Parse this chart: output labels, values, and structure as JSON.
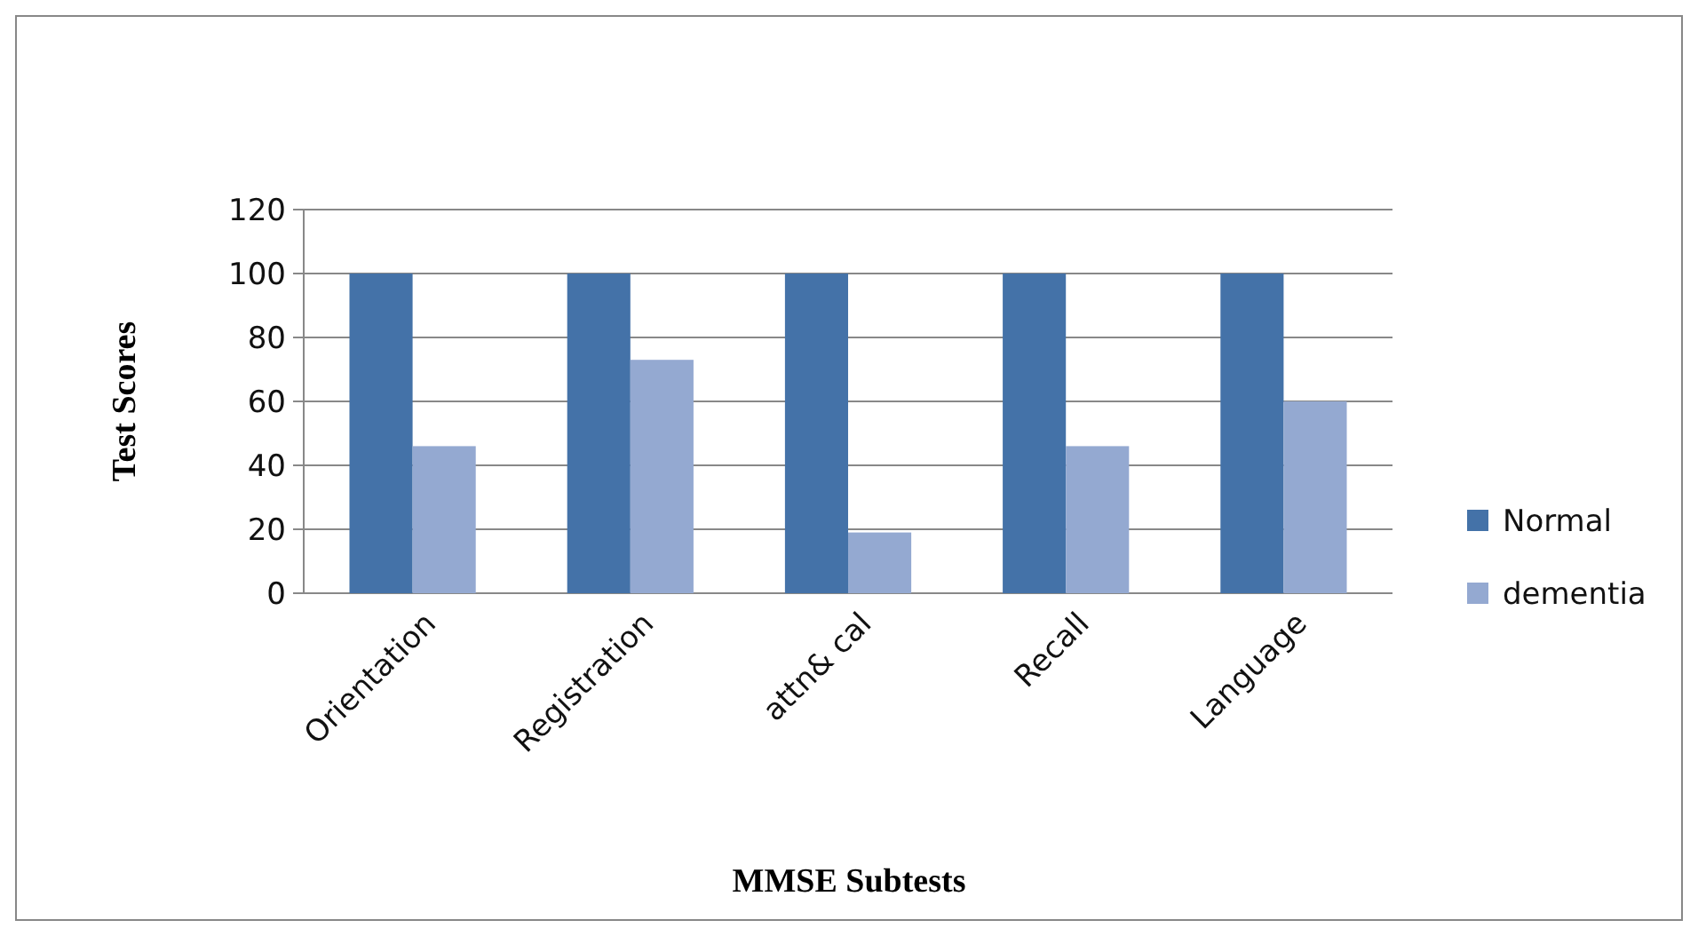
{
  "chart_data": {
    "type": "bar",
    "xlabel": "MMSE Subtests",
    "ylabel": "Test Scores",
    "categories": [
      "Orientation",
      "Registration",
      "attn& cal",
      "Recall",
      "Language"
    ],
    "series": [
      {
        "name": "Normal",
        "color": "#4472a8",
        "values": [
          100,
          100,
          100,
          100,
          100
        ]
      },
      {
        "name": "dementia",
        "color": "#94a9d1",
        "values": [
          46,
          73,
          19,
          46,
          60
        ]
      }
    ],
    "ylim": [
      0,
      120
    ],
    "yticks": [
      0,
      20,
      40,
      60,
      80,
      100,
      120
    ],
    "grid": "y",
    "legend": "right"
  }
}
